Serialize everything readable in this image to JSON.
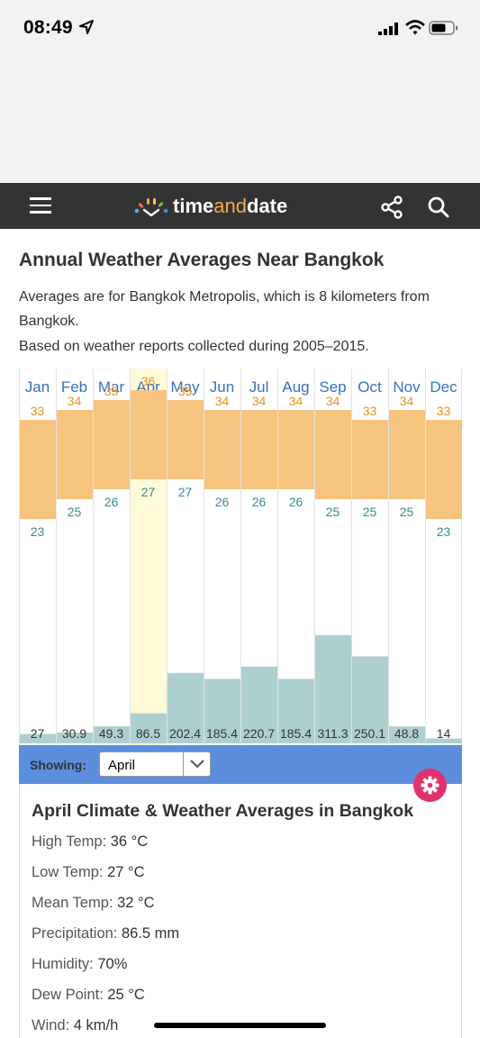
{
  "status": {
    "time": "08:49"
  },
  "nav": {
    "logo_time": "time",
    "logo_and": "and",
    "logo_date": "date"
  },
  "page": {
    "title": "Annual Weather Averages Near Bangkok",
    "intro": "Averages are for Bangkok Metropolis, which is 8 kilometers from Bangkok.",
    "basis": "Based on weather reports collected during 2005–2015."
  },
  "chart_data": {
    "type": "bar",
    "categories": [
      "Jan",
      "Feb",
      "Mar",
      "Apr",
      "May",
      "Jun",
      "Jul",
      "Aug",
      "Sep",
      "Oct",
      "Nov",
      "Dec"
    ],
    "series": [
      {
        "values": [
          33,
          34,
          35,
          36,
          35,
          34,
          34,
          34,
          34,
          33,
          34,
          33
        ]
      },
      {
        "values": [
          23,
          25,
          26,
          27,
          27,
          26,
          26,
          26,
          25,
          25,
          25,
          23
        ]
      },
      {
        "values": [
          27,
          30.9,
          49.3,
          86.5,
          202.4,
          185.4,
          220.7,
          185.4,
          311.3,
          250.1,
          48.8,
          14
        ]
      }
    ],
    "selected_category": "Apr",
    "colors": {
      "temp_band": "#f6c47f",
      "high_label": "#e8911e",
      "low_label": "#3a8a8f",
      "precip": "#aecfd0",
      "highlight": "#fffbd6",
      "month": "#3a6fc4"
    }
  },
  "showing": {
    "label": "Showing:",
    "value": "April"
  },
  "detail": {
    "title": "April Climate & Weather Averages in Bangkok",
    "rows": [
      {
        "label": "High Temp: ",
        "value": "36 °C"
      },
      {
        "label": "Low Temp: ",
        "value": "27 °C"
      },
      {
        "label": "Mean Temp: ",
        "value": "32 °C"
      },
      {
        "label": "Precipitation: ",
        "value": "86.5 mm"
      },
      {
        "label": "Humidity: ",
        "value": "70%"
      },
      {
        "label": "Dew Point: ",
        "value": "25 °C"
      },
      {
        "label": "Wind: ",
        "value": "4 km/h"
      }
    ]
  }
}
